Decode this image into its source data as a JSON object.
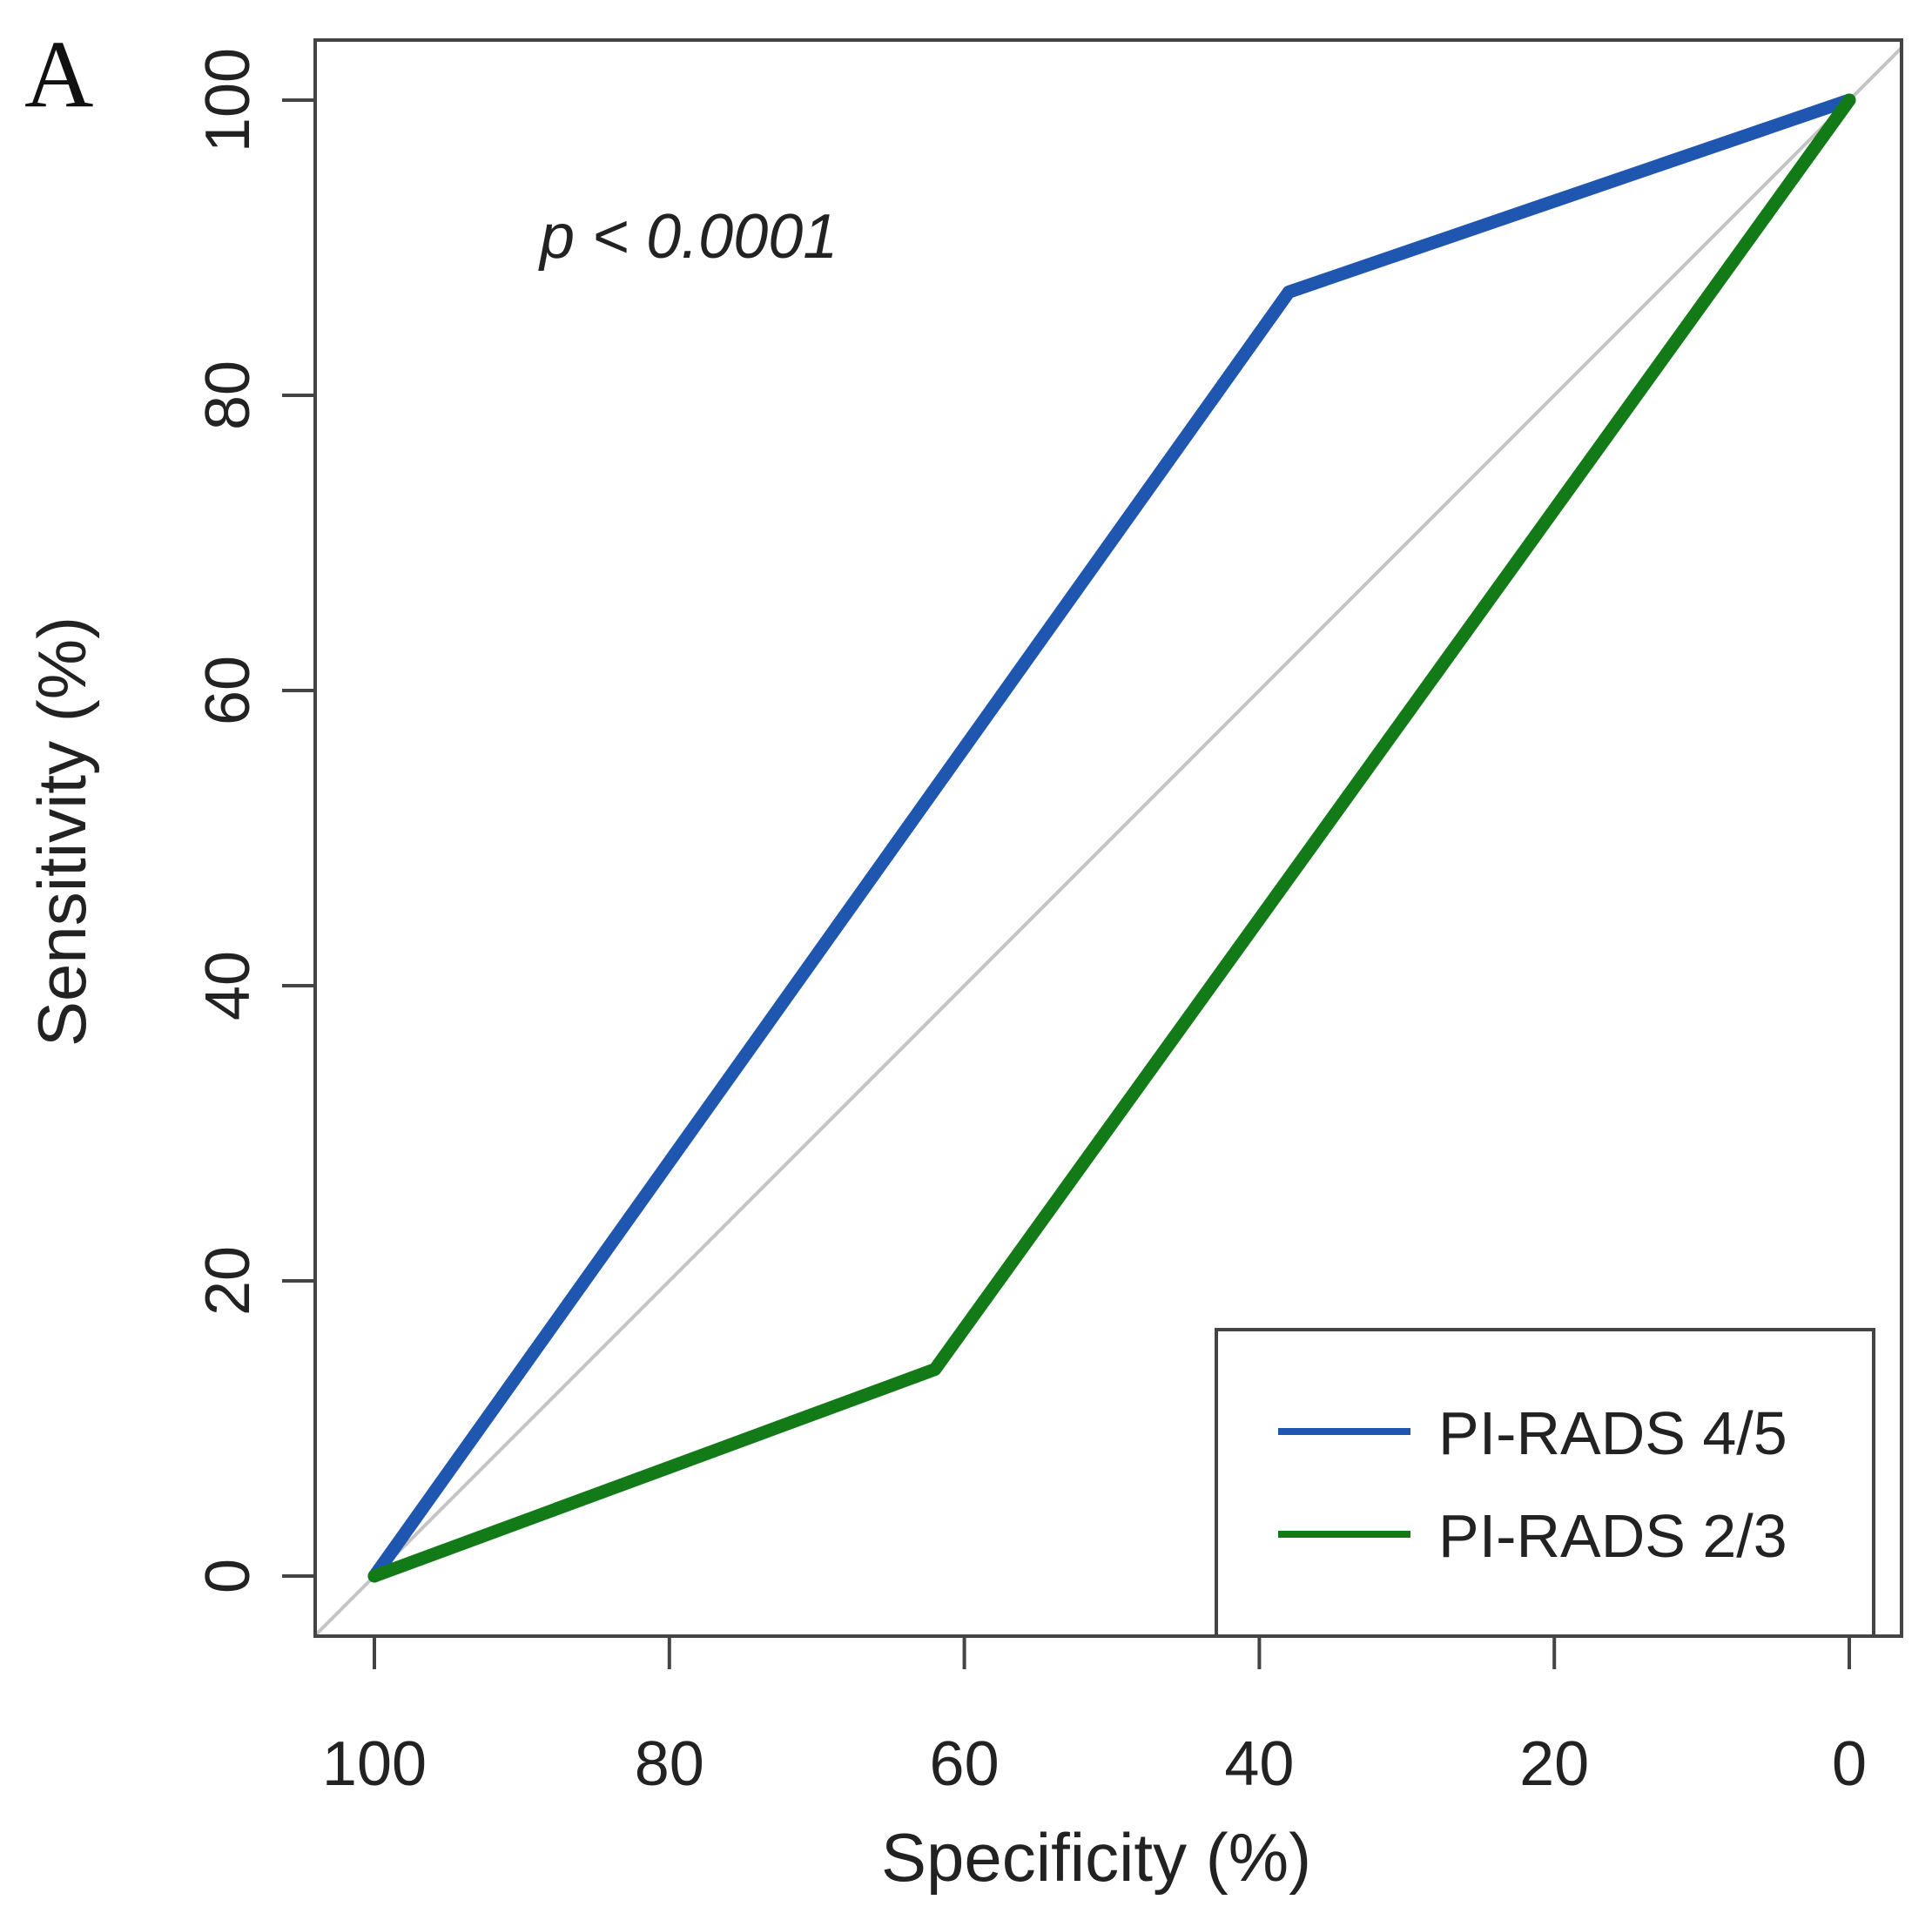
{
  "panel_label": "A",
  "annotation": "p < 0.0001",
  "colors": {
    "series_a": "#1f56b0",
    "series_b": "#137a18",
    "diagonal": "#c4c4c4",
    "frame": "#444444",
    "text": "#222222"
  },
  "chart_data": {
    "type": "line",
    "title": "",
    "xlabel": "Specificity (%)",
    "ylabel": "Sensitivity (%)",
    "xlim": [
      100,
      0
    ],
    "ylim": [
      0,
      100
    ],
    "x_reversed": true,
    "xticks": [
      100,
      80,
      60,
      40,
      20,
      0
    ],
    "yticks": [
      0,
      20,
      40,
      60,
      80,
      100
    ],
    "xtick_labels": [
      "100",
      "80",
      "60",
      "40",
      "20",
      "0"
    ],
    "ytick_labels": [
      "0",
      "20",
      "40",
      "60",
      "80",
      "100"
    ],
    "reference_line": {
      "from": [
        100,
        0
      ],
      "to": [
        0,
        100
      ]
    },
    "legend_position": "bottom-right",
    "series": [
      {
        "name": "PI-RADS 4/5",
        "color": "#1f56b0",
        "points": [
          [
            100,
            0
          ],
          [
            38,
            87
          ],
          [
            0,
            100
          ]
        ]
      },
      {
        "name": "PI-RADS 2/3",
        "color": "#137a18",
        "points": [
          [
            100,
            0
          ],
          [
            62,
            14
          ],
          [
            0,
            100
          ]
        ]
      }
    ]
  }
}
